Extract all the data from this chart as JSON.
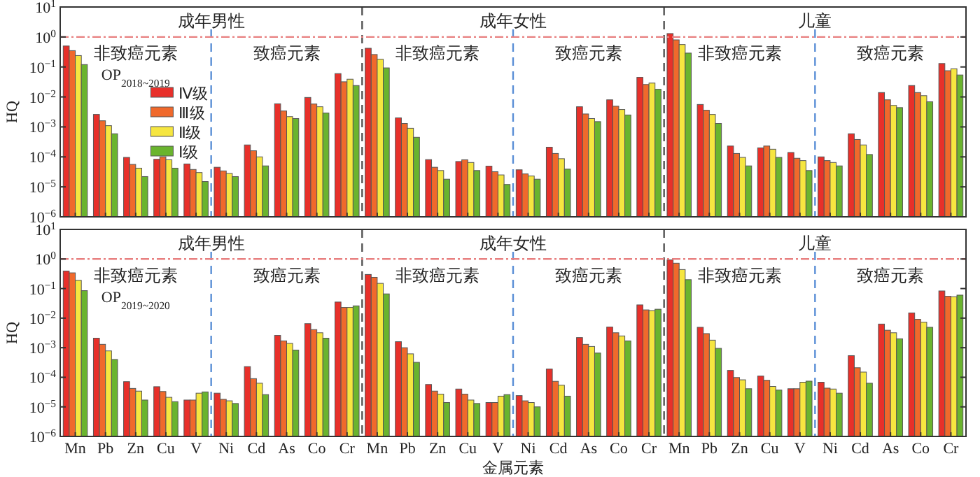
{
  "chart_data": [
    {
      "type": "bar",
      "ylabel": "HQ",
      "log": true,
      "ylim": [
        1e-06,
        10
      ],
      "legend": "left",
      "yticks": [
        {
          "value": 1e-06,
          "label": "10$^{−6}$"
        },
        {
          "value": 1e-05,
          "label": "10$^{−5}$"
        },
        {
          "value": 0.0001,
          "label": "10$^{−4}$"
        },
        {
          "value": 0.001,
          "label": "10$^{−3}$"
        },
        {
          "value": 0.01,
          "label": "10$^{−2}$"
        },
        {
          "value": 0.1,
          "label": "10$^{−1}$"
        },
        {
          "value": 1,
          "label": "10$^{0}$"
        },
        {
          "value": 10,
          "label": "10$^{1}$"
        }
      ],
      "categories": [
        null,
        null,
        null,
        null,
        null,
        null,
        null,
        null,
        null,
        null,
        null,
        null,
        null,
        null,
        null,
        null,
        null,
        null,
        null,
        null,
        null,
        null,
        null,
        null,
        null,
        null,
        null,
        null,
        null,
        null
      ],
      "series": [
        {
          "name": "Ⅳ级",
          "color": "#e8302a",
          "values": [
            0.5,
            0.0026,
            9.6e-05,
            8.3e-05,
            5.8e-05,
            4.5e-05,
            0.00025,
            0.0059,
            0.0096,
            0.06,
            0.42,
            0.002,
            8.1e-05,
            7e-05,
            4.9e-05,
            3.7e-05,
            0.00021,
            0.0047,
            0.008,
            0.045,
            1.3,
            0.0056,
            0.00023,
            0.0002,
            0.00014,
            0.0001,
            0.00059,
            0.014,
            0.024,
            0.13
          ]
        },
        {
          "name": "Ⅲ级",
          "color": "#f0692c",
          "values": [
            0.35,
            0.0016,
            5.6e-05,
            0.0001,
            3.8e-05,
            3.4e-05,
            0.00016,
            0.0034,
            0.0058,
            0.032,
            0.26,
            0.0013,
            4.5e-05,
            8e-05,
            3.2e-05,
            2.7e-05,
            0.00013,
            0.0027,
            0.0049,
            0.026,
            0.8,
            0.0036,
            0.00013,
            0.00023,
            9e-05,
            7.5e-05,
            0.00038,
            0.008,
            0.014,
            0.075
          ]
        },
        {
          "name": "Ⅱ级",
          "color": "#f6e640",
          "values": [
            0.24,
            0.0011,
            4.2e-05,
            8e-05,
            3e-05,
            2.8e-05,
            0.0001,
            0.0022,
            0.0047,
            0.039,
            0.18,
            0.0009,
            3.5e-05,
            6.5e-05,
            2.5e-05,
            2.3e-05,
            8.7e-05,
            0.0019,
            0.0038,
            0.029,
            0.56,
            0.0026,
            9.6e-05,
            0.00018,
            7.5e-05,
            6.5e-05,
            0.00025,
            0.0052,
            0.011,
            0.087
          ]
        },
        {
          "name": "Ⅰ级",
          "color": "#6ab42e",
          "values": [
            0.12,
            0.00059,
            2.2e-05,
            4.2e-05,
            1.5e-05,
            2.2e-05,
            5e-05,
            0.0019,
            0.0029,
            0.024,
            0.093,
            0.00045,
            1.8e-05,
            3.5e-05,
            1.2e-05,
            1.8e-05,
            3.9e-05,
            0.0015,
            0.0025,
            0.018,
            0.29,
            0.0013,
            5e-05,
            9.6e-05,
            3.5e-05,
            5e-05,
            0.00012,
            0.0044,
            0.0069,
            0.054
          ]
        }
      ],
      "ref_lines": [
        {
          "axis": "y",
          "value": 1,
          "color": "#e88080",
          "line_style": "dashdot"
        }
      ],
      "annotations": [
        "成年男性",
        "成年女性",
        "儿童",
        "非致癌元素",
        "致癌元素",
        "非致癌元素",
        "致癌元素",
        "非致癌元素",
        "致癌元素",
        "OP$_{2018~2019}$"
      ]
    },
    {
      "type": "bar",
      "ylabel": "HQ",
      "xlabel": "金属元素",
      "log": true,
      "ylim": [
        1e-06,
        10
      ],
      "yticks": [
        {
          "value": 1e-06,
          "label": "10$^{−6}$"
        },
        {
          "value": 1e-05,
          "label": "10$^{−5}$"
        },
        {
          "value": 0.0001,
          "label": "10$^{−4}$"
        },
        {
          "value": 0.001,
          "label": "10$^{−3}$"
        },
        {
          "value": 0.01,
          "label": "10$^{−2}$"
        },
        {
          "value": 0.1,
          "label": "10$^{−1}$"
        },
        {
          "value": 1,
          "label": "10$^{0}$"
        },
        {
          "value": 10,
          "label": "10$^{1}$"
        }
      ],
      "categories": [
        "Mn",
        "Pb",
        "Zn",
        "Cu",
        "V",
        "Ni",
        "Cd",
        "As",
        "Co",
        "Cr",
        "Mn",
        "Pb",
        "Zn",
        "Cu",
        "V",
        "Ni",
        "Cd",
        "As",
        "Co",
        "Cr",
        "Mn",
        "Pb",
        "Zn",
        "Cu",
        "V",
        "Ni",
        "Cd",
        "As",
        "Co",
        "Cr"
      ],
      "series": [
        {
          "color": "#e8302a",
          "values": [
            0.39,
            0.0021,
            7.1e-05,
            4.8e-05,
            1.7e-05,
            2.9e-05,
            0.00023,
            0.0026,
            0.0065,
            0.035,
            0.3,
            0.0016,
            5.7e-05,
            4e-05,
            1.4e-05,
            2.4e-05,
            0.00019,
            0.0022,
            0.005,
            0.028,
            0.93,
            0.0049,
            0.00017,
            0.00011,
            4.1e-05,
            6.8e-05,
            0.00054,
            0.0063,
            0.015,
            0.083
          ]
        },
        {
          "color": "#f0692c",
          "values": [
            0.34,
            0.0013,
            4.2e-05,
            3.3e-05,
            1.7e-05,
            1.8e-05,
            9e-05,
            0.0017,
            0.0041,
            0.023,
            0.24,
            0.001,
            3.4e-05,
            2.7e-05,
            1.4e-05,
            1.6e-05,
            7.3e-05,
            0.0013,
            0.0032,
            0.019,
            0.72,
            0.003,
            9.8e-05,
            7.9e-05,
            4.1e-05,
            4.3e-05,
            0.00021,
            0.0039,
            0.0091,
            0.055
          ]
        },
        {
          "color": "#f6e640",
          "values": [
            0.19,
            0.00078,
            3.4e-05,
            2.1e-05,
            2.9e-05,
            1.6e-05,
            6.3e-05,
            0.0014,
            0.0032,
            0.023,
            0.15,
            0.00062,
            2.7e-05,
            1.7e-05,
            2.3e-05,
            1.4e-05,
            5.4e-05,
            0.0011,
            0.0025,
            0.018,
            0.44,
            0.0018,
            8.2e-05,
            4.9e-05,
            6.8e-05,
            4e-05,
            0.00015,
            0.0032,
            0.0073,
            0.053
          ]
        },
        {
          "color": "#6ab42e",
          "values": [
            0.085,
            0.0004,
            1.7e-05,
            1.5e-05,
            3.2e-05,
            1.3e-05,
            2.6e-05,
            0.00083,
            0.0021,
            0.026,
            0.066,
            0.00032,
            1.4e-05,
            1.3e-05,
            2.6e-05,
            1e-05,
            2.3e-05,
            0.00066,
            0.0017,
            0.02,
            0.2,
            0.00095,
            4.1e-05,
            3.7e-05,
            7.4e-05,
            2.9e-05,
            6.3e-05,
            0.002,
            0.0049,
            0.06
          ]
        }
      ],
      "ref_lines": [
        {
          "axis": "y",
          "value": 1,
          "color": "#e88080",
          "line_style": "dashdot"
        }
      ],
      "annotations": [
        "成年男性",
        "成年女性",
        "儿童",
        "非致癌元素",
        "致癌元素",
        "非致癌元素",
        "致癌元素",
        "非致癌元素",
        "致癌元素",
        "OP$_{2019~2020}$"
      ]
    }
  ]
}
